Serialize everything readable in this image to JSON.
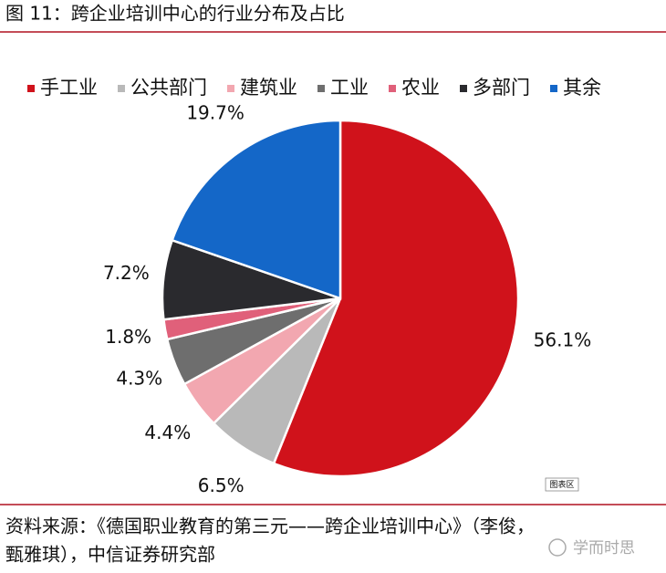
{
  "chart_data": {
    "type": "pie",
    "title": "图 11：跨企业培训中心的行业分布及占比",
    "categories": [
      "手工业",
      "公共部门",
      "建筑业",
      "工业",
      "农业",
      "多部门",
      "其余"
    ],
    "values": [
      56.1,
      6.5,
      4.4,
      4.3,
      1.8,
      7.2,
      19.7
    ],
    "value_labels": [
      "56.1%",
      "6.5%",
      "4.4%",
      "4.3%",
      "1.8%",
      "7.2%",
      "19.7%"
    ],
    "colors": [
      "#d0121b",
      "#b9b9b9",
      "#f2a7b0",
      "#6e6e6e",
      "#e0607a",
      "#2a2a2e",
      "#1467c8"
    ],
    "legend": "top",
    "chart_area_label": "图表区",
    "source": [
      "资料来源：《德国职业教育的第三元——跨企业培训中心》（李俊，",
      "甄雅琪），中信证券研究部"
    ],
    "watermark": "学而时思"
  }
}
